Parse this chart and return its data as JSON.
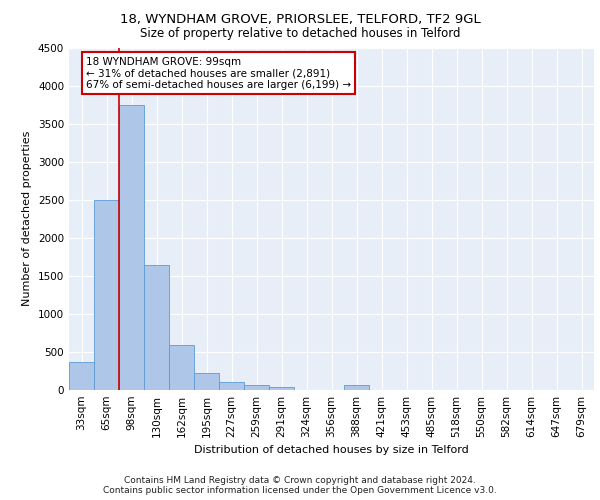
{
  "title1": "18, WYNDHAM GROVE, PRIORSLEE, TELFORD, TF2 9GL",
  "title2": "Size of property relative to detached houses in Telford",
  "xlabel": "Distribution of detached houses by size in Telford",
  "ylabel": "Number of detached properties",
  "categories": [
    "33sqm",
    "65sqm",
    "98sqm",
    "130sqm",
    "162sqm",
    "195sqm",
    "227sqm",
    "259sqm",
    "291sqm",
    "324sqm",
    "356sqm",
    "388sqm",
    "421sqm",
    "453sqm",
    "485sqm",
    "518sqm",
    "550sqm",
    "582sqm",
    "614sqm",
    "647sqm",
    "679sqm"
  ],
  "values": [
    370,
    2500,
    3750,
    1640,
    590,
    220,
    105,
    65,
    40,
    0,
    0,
    60,
    0,
    0,
    0,
    0,
    0,
    0,
    0,
    0,
    0
  ],
  "bar_color": "#aec6e8",
  "bar_edge_color": "#5b9bd5",
  "highlight_line_color": "#cc0000",
  "annotation_text": "18 WYNDHAM GROVE: 99sqm\n← 31% of detached houses are smaller (2,891)\n67% of semi-detached houses are larger (6,199) →",
  "annotation_box_color": "#ffffff",
  "annotation_box_edge_color": "#cc0000",
  "ylim": [
    0,
    4500
  ],
  "yticks": [
    0,
    500,
    1000,
    1500,
    2000,
    2500,
    3000,
    3500,
    4000,
    4500
  ],
  "footer1": "Contains HM Land Registry data © Crown copyright and database right 2024.",
  "footer2": "Contains public sector information licensed under the Open Government Licence v3.0.",
  "bg_color": "#e8eef8",
  "grid_color": "#ffffff",
  "title1_fontsize": 9.5,
  "title2_fontsize": 8.5,
  "axis_label_fontsize": 8,
  "tick_fontsize": 7.5,
  "annotation_fontsize": 7.5,
  "footer_fontsize": 6.5
}
